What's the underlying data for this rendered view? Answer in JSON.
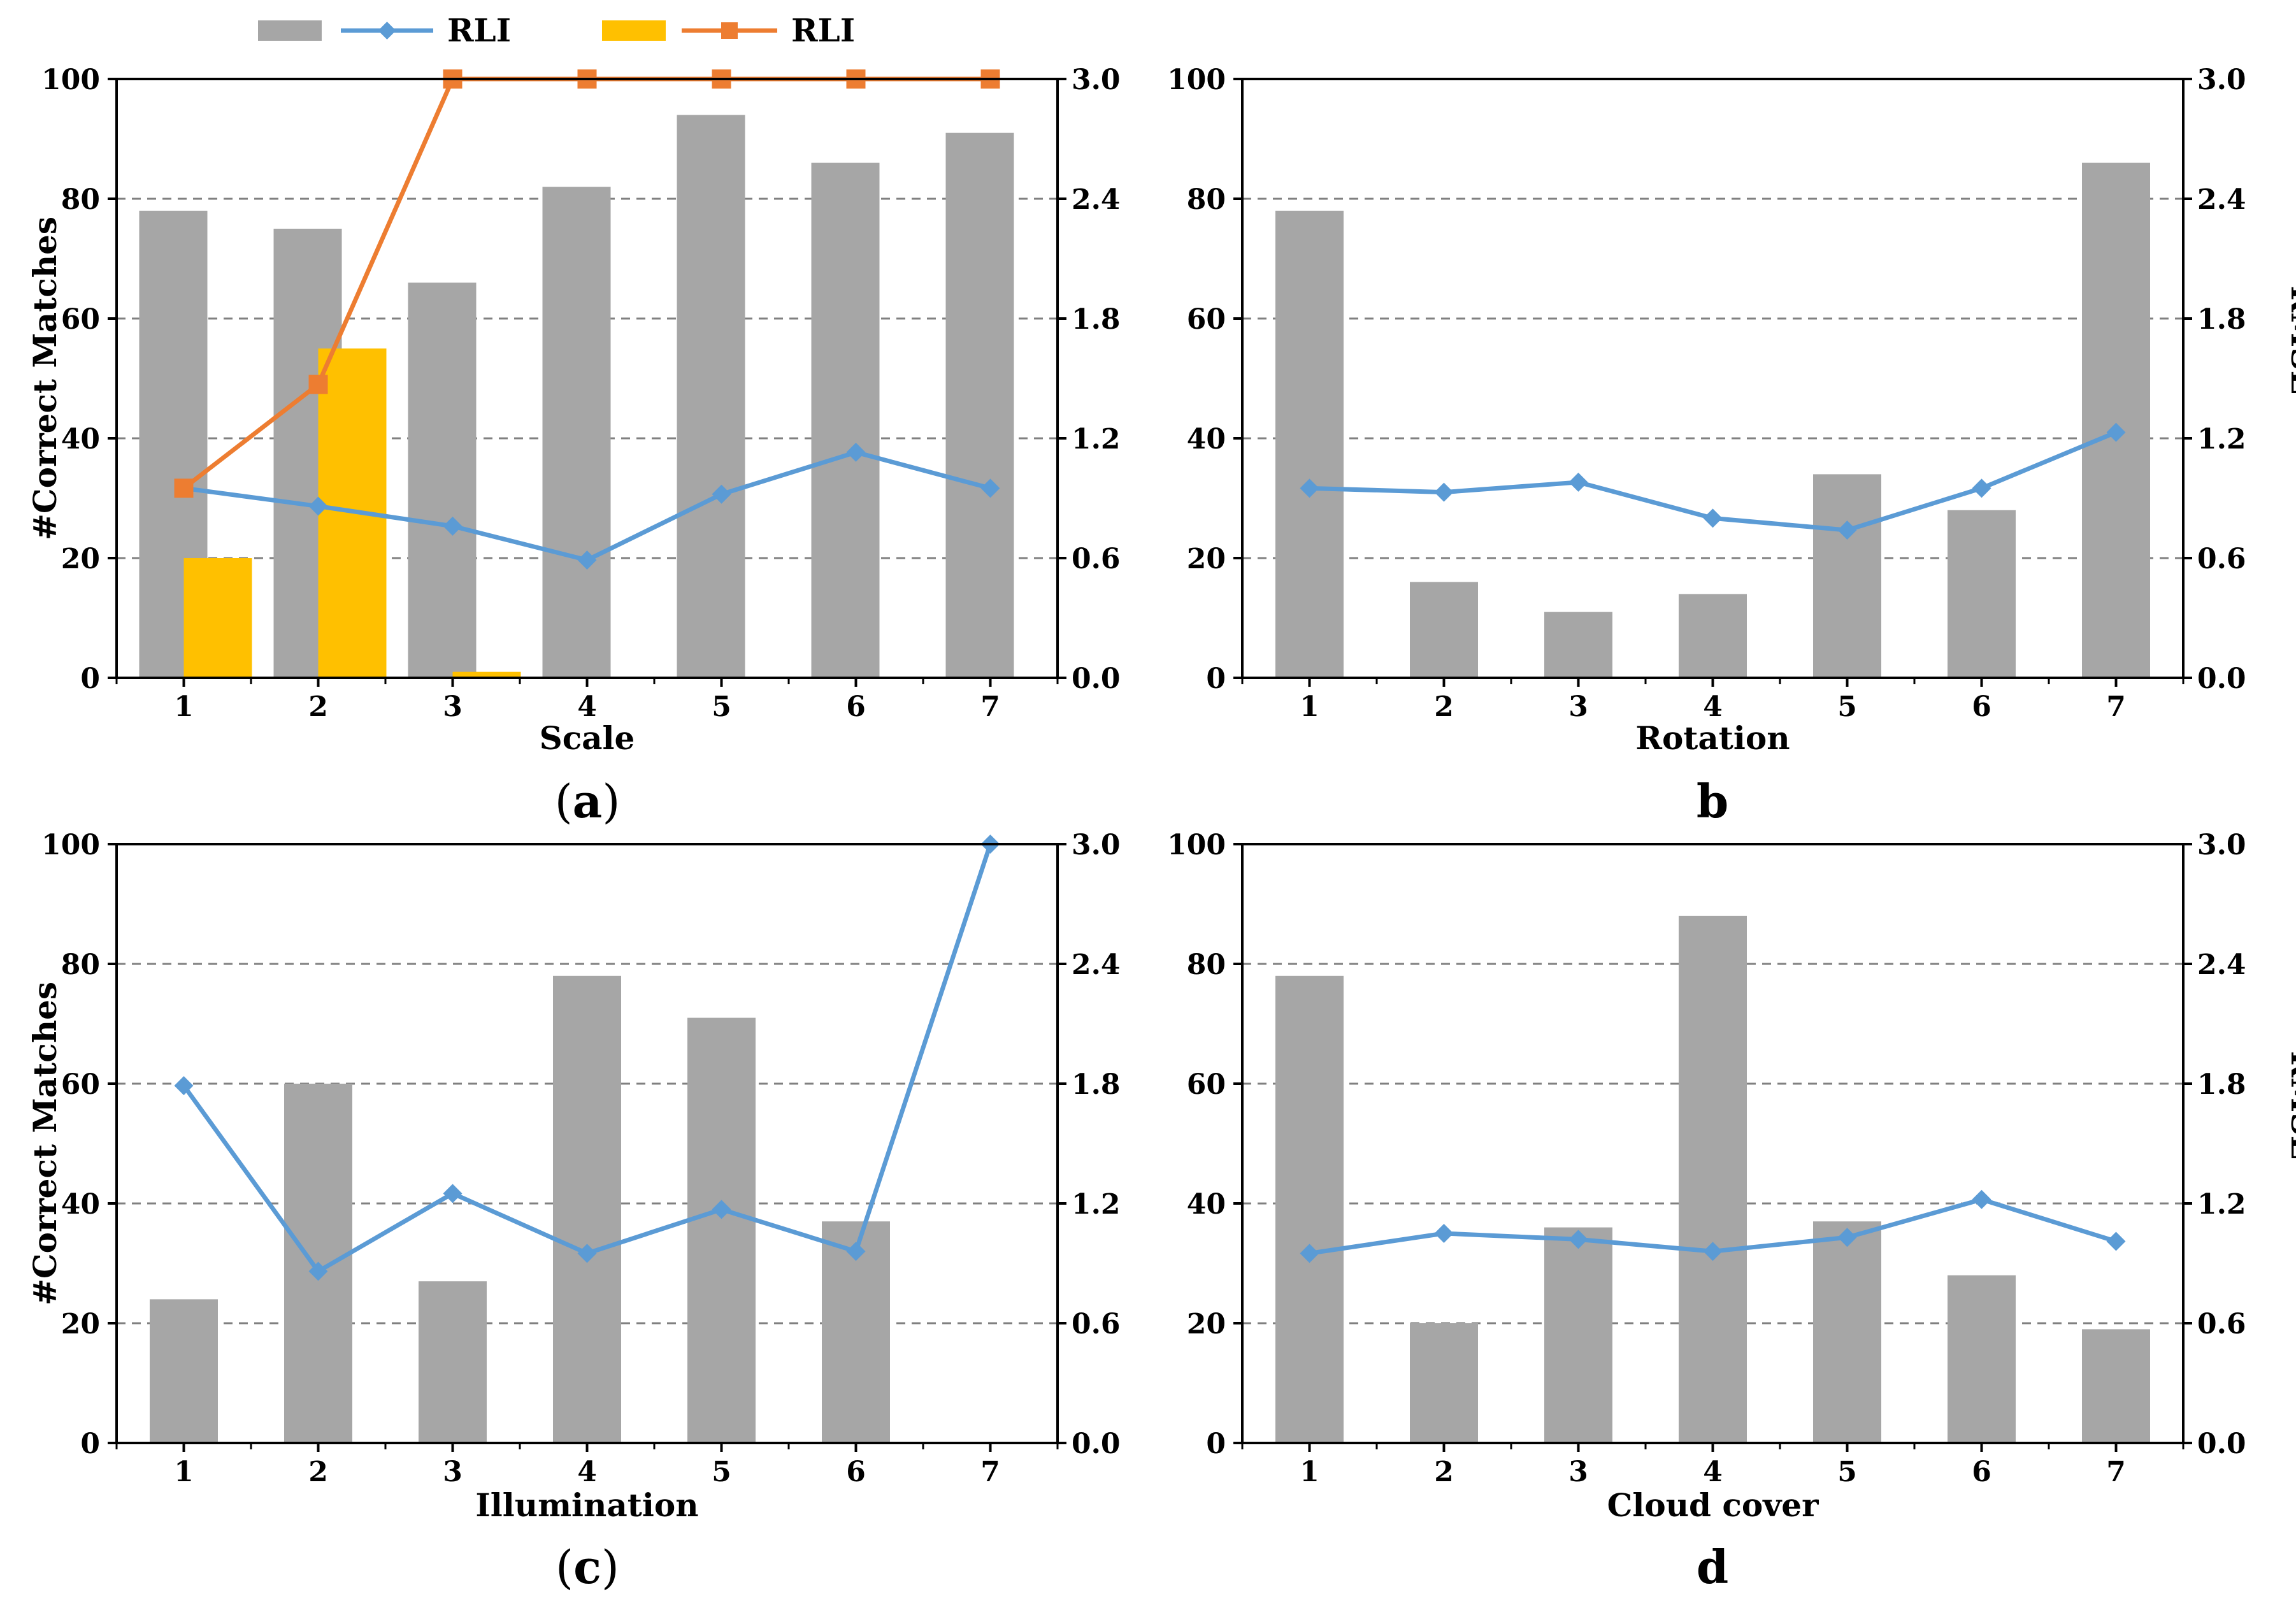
{
  "legend": {
    "items": [
      {
        "kind": "bar",
        "label": "",
        "color": "#a6a6a6"
      },
      {
        "kind": "line-diamond",
        "label": "RLI",
        "color": "#5b9bd5"
      },
      {
        "kind": "bar",
        "label": "",
        "color": "#ffc000"
      },
      {
        "kind": "line-square",
        "label": "RLI",
        "color": "#ed7d31"
      }
    ]
  },
  "colors": {
    "bar_gray": "#a6a6a6",
    "bar_yellow": "#ffc000",
    "line_blue": "#5b9bd5",
    "line_orange": "#ed7d31",
    "grid": "#808080"
  },
  "chart_data": [
    {
      "id": "a",
      "type": "bar+line",
      "panel_label": "(a)",
      "panel_label_parts": [
        "(",
        "a",
        ")"
      ],
      "xlabel": "Scale",
      "ylabel_left": "#Correct Matches",
      "ylabel_right": "",
      "categories": [
        "1",
        "2",
        "3",
        "4",
        "5",
        "6",
        "7"
      ],
      "ylim_left": [
        0,
        100
      ],
      "ylim_right": [
        0,
        3.0
      ],
      "yticks_left": [
        "0",
        "20",
        "40",
        "60",
        "80",
        "100"
      ],
      "yticks_right": [
        "0.0",
        "0.6",
        "1.2",
        "1.8",
        "2.4",
        "3.0"
      ],
      "bars": [
        {
          "name": "gray",
          "color": "#a6a6a6",
          "values": [
            78,
            75,
            66,
            82,
            94,
            86,
            91
          ]
        },
        {
          "name": "yellow",
          "color": "#ffc000",
          "values": [
            20,
            55,
            1,
            0,
            0,
            0,
            0
          ]
        }
      ],
      "lines": [
        {
          "name": "RLI",
          "marker": "diamond",
          "color": "#5b9bd5",
          "values": [
            0.95,
            0.86,
            0.76,
            0.59,
            0.92,
            1.13,
            0.95
          ]
        },
        {
          "name": "RLI",
          "marker": "square",
          "color": "#ed7d31",
          "values": [
            0.95,
            1.47,
            3.0,
            3.0,
            3.0,
            3.0,
            3.0
          ]
        }
      ]
    },
    {
      "id": "b",
      "type": "bar+line",
      "panel_label": "b",
      "panel_label_parts": [
        "",
        "b",
        ""
      ],
      "xlabel": "Rotation",
      "ylabel_left": "",
      "ylabel_right": "RMSE",
      "categories": [
        "1",
        "2",
        "3",
        "4",
        "5",
        "6",
        "7"
      ],
      "ylim_left": [
        0,
        100
      ],
      "ylim_right": [
        0,
        3.0
      ],
      "yticks_left": [
        "0",
        "20",
        "40",
        "60",
        "80",
        "100"
      ],
      "yticks_right": [
        "0.0",
        "0.6",
        "1.2",
        "1.8",
        "2.4",
        "3.0"
      ],
      "bars": [
        {
          "name": "gray",
          "color": "#a6a6a6",
          "values": [
            78,
            16,
            11,
            14,
            34,
            28,
            86
          ]
        }
      ],
      "lines": [
        {
          "name": "RLI",
          "marker": "diamond",
          "color": "#5b9bd5",
          "values": [
            0.95,
            0.93,
            0.98,
            0.8,
            0.74,
            0.95,
            1.23
          ]
        }
      ]
    },
    {
      "id": "c",
      "type": "bar+line",
      "panel_label": "(c)",
      "panel_label_parts": [
        "(",
        "c",
        ")"
      ],
      "xlabel": "Illumination",
      "ylabel_left": "#Correct Matches",
      "ylabel_right": "",
      "categories": [
        "1",
        "2",
        "3",
        "4",
        "5",
        "6",
        "7"
      ],
      "ylim_left": [
        0,
        100
      ],
      "ylim_right": [
        0,
        3.0
      ],
      "yticks_left": [
        "0",
        "20",
        "40",
        "60",
        "80",
        "100"
      ],
      "yticks_right": [
        "0.0",
        "0.6",
        "1.2",
        "1.8",
        "2.4",
        "3.0"
      ],
      "bars": [
        {
          "name": "gray",
          "color": "#a6a6a6",
          "values": [
            24,
            60,
            27,
            78,
            71,
            37,
            0
          ]
        }
      ],
      "lines": [
        {
          "name": "RLI",
          "marker": "diamond",
          "color": "#5b9bd5",
          "values": [
            1.79,
            0.86,
            1.25,
            0.95,
            1.17,
            0.96,
            3.0
          ]
        }
      ]
    },
    {
      "id": "d",
      "type": "bar+line",
      "panel_label": "d",
      "panel_label_parts": [
        "",
        "d",
        ""
      ],
      "xlabel": "Cloud cover",
      "ylabel_left": "",
      "ylabel_right": "RMSE",
      "categories": [
        "1",
        "2",
        "3",
        "4",
        "5",
        "6",
        "7"
      ],
      "ylim_left": [
        0,
        100
      ],
      "ylim_right": [
        0,
        3.0
      ],
      "yticks_left": [
        "0",
        "20",
        "40",
        "60",
        "80",
        "100"
      ],
      "yticks_right": [
        "0.0",
        "0.6",
        "1.2",
        "1.8",
        "2.4",
        "3.0"
      ],
      "bars": [
        {
          "name": "gray",
          "color": "#a6a6a6",
          "values": [
            78,
            20,
            36,
            88,
            37,
            28,
            19
          ]
        }
      ],
      "lines": [
        {
          "name": "RLI",
          "marker": "diamond",
          "color": "#5b9bd5",
          "values": [
            0.95,
            1.05,
            1.02,
            0.96,
            1.03,
            1.22,
            1.01
          ]
        }
      ]
    }
  ]
}
